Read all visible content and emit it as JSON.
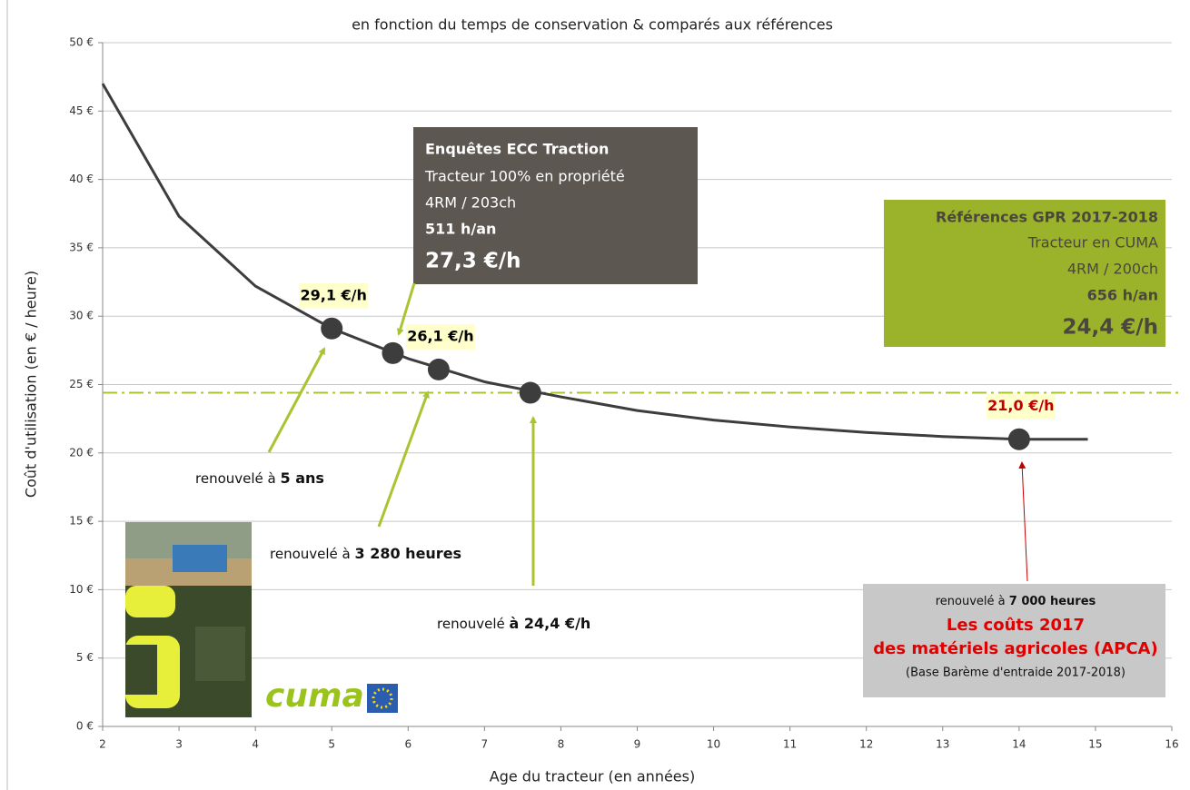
{
  "chart_data": {
    "type": "line",
    "title": "en fonction du temps de conservation & comparés aux références",
    "x_label": "Age du tracteur (en années)",
    "y_label": "Coût d'utilisation (en € / heure)",
    "x": [
      2,
      3,
      4,
      5,
      6,
      7,
      8,
      9,
      10,
      11,
      12,
      13,
      14,
      14.9
    ],
    "values": [
      47,
      37.3,
      32.2,
      29.1,
      26.9,
      25.2,
      24.1,
      23.1,
      22.4,
      21.9,
      21.5,
      21.2,
      21.0,
      21.0
    ],
    "color": "#3d3d3d",
    "points": {
      "x": [
        5,
        5.8,
        6.4,
        7.6,
        14
      ],
      "values": [
        29.1,
        27.3,
        26.1,
        24.4,
        21.0
      ],
      "value_labels": [
        "29,1 €/h",
        null,
        "26,1 €/h",
        null,
        "21,0 €/h"
      ],
      "label_colors": [
        "#000000",
        null,
        "#000000",
        null,
        "#c00000"
      ]
    },
    "reference_line": {
      "value": 24.4,
      "color": "#a8c430"
    },
    "xlim": [
      2,
      16
    ],
    "xticks": [
      2,
      3,
      4,
      5,
      6,
      7,
      8,
      9,
      10,
      11,
      12,
      13,
      14,
      15,
      16
    ],
    "ylim": [
      0,
      50
    ],
    "yticks": [
      {
        "value": 0,
        "label": "0 €"
      },
      {
        "value": 5,
        "label": "5 €"
      },
      {
        "value": 10,
        "label": "10 €"
      },
      {
        "value": 15,
        "label": "15 €"
      },
      {
        "value": 20,
        "label": "20 €"
      },
      {
        "value": 25,
        "label": "25 €"
      },
      {
        "value": 30,
        "label": "30 €"
      },
      {
        "value": 35,
        "label": "35 €"
      },
      {
        "value": 40,
        "label": "40 €"
      },
      {
        "value": 45,
        "label": "45 €"
      },
      {
        "value": 50,
        "label": "50 €"
      }
    ],
    "grid": true,
    "annotations": {
      "ecc": {
        "title": "Enquêtes ECC Traction",
        "line1": "Tracteur 100% en propriété",
        "line2": "4RM / 203ch",
        "hours": "511 h/an",
        "cost": "27,3 €/h"
      },
      "gpr": {
        "title": "Références GPR 2017-2018",
        "line1": "Tracteur en CUMA",
        "line2": "4RM / 200ch",
        "hours": "656 h/an",
        "cost": "24,4 €/h"
      },
      "apca": {
        "prefix": "renouvelé à ",
        "hours": "7 000 heures",
        "title1": "Les coûts 2017",
        "title2": "des matériels agricoles (APCA)",
        "note": "(Base Barème d'entraide 2017-2018)"
      },
      "renewals": [
        {
          "prefix": "renouvelé à ",
          "emphasis": "5 ans"
        },
        {
          "prefix": "renouvelé à ",
          "emphasis": "3 280 heures"
        },
        {
          "prefix": "renouvelé ",
          "emphasis": "à 24,4 €/h"
        }
      ],
      "logo": "cuma"
    }
  }
}
